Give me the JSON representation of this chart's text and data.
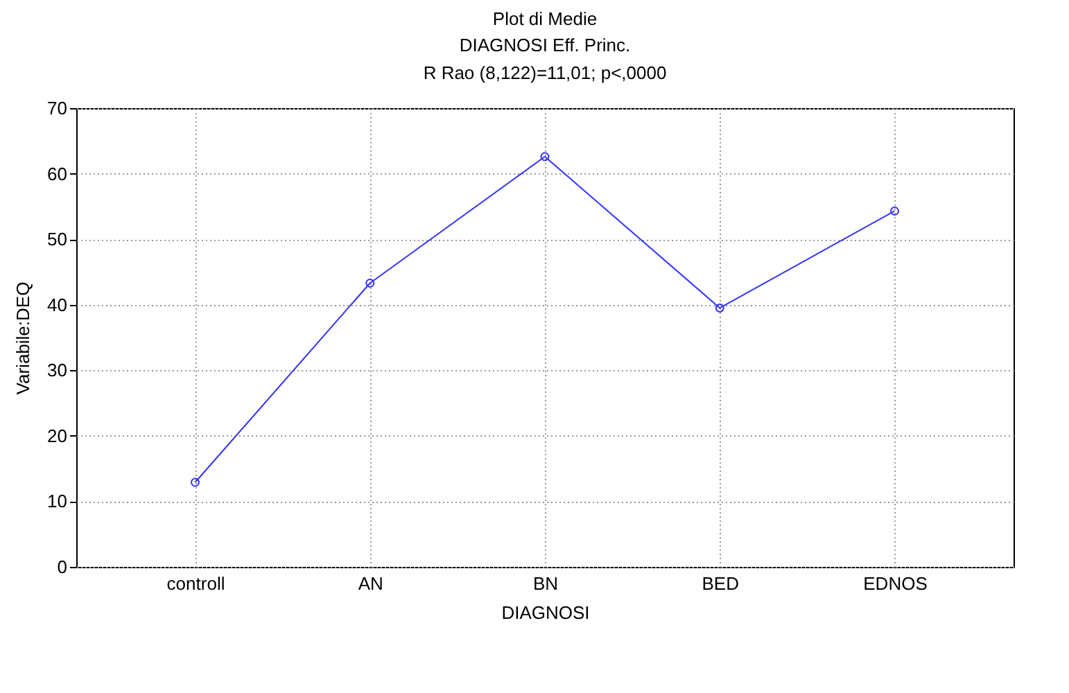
{
  "chart_data": {
    "type": "line",
    "title": "Plot di Medie",
    "subtitle": "DIAGNOSI Eff. Princ.\nR Rao (8,122)=11,01; p<,0000",
    "xlabel": "DIAGNOSI",
    "ylabel": "Variabile:DEQ",
    "categories": [
      "controll",
      "AN",
      "BN",
      "BED",
      "EDNOS"
    ],
    "series": [
      {
        "color": "#3333ff",
        "values": [
          12.9,
          43.3,
          62.6,
          39.5,
          54.3
        ]
      }
    ],
    "ylim": [
      0,
      70
    ],
    "yticks": [
      0,
      10,
      20,
      30,
      40,
      50,
      60,
      70
    ],
    "grid": true,
    "marker": "circle",
    "line_style": "solid"
  }
}
